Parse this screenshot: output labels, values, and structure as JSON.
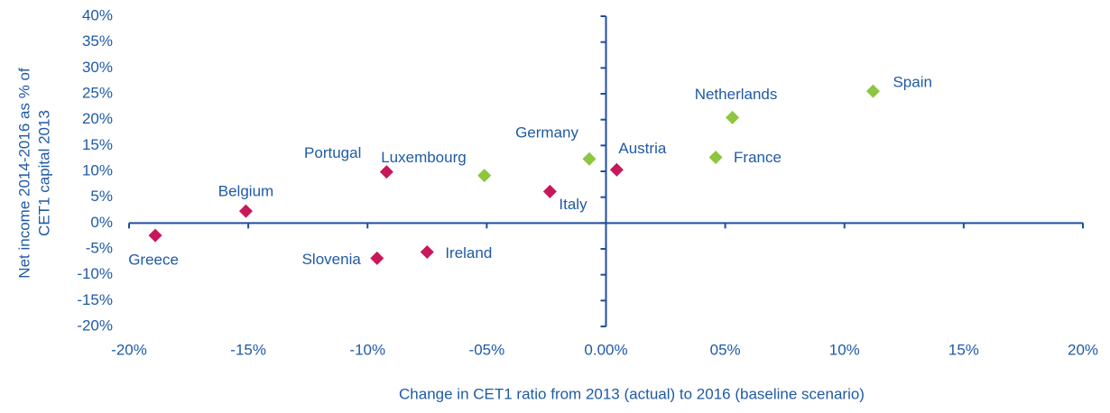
{
  "chart_data": {
    "type": "scatter",
    "xlabel": "Change in CET1 ratio from 2013 (actual) to 2016 (baseline scenario)",
    "ylabel": [
      "Net income 2014-2016 as % of",
      "CET1 capital 2013"
    ],
    "xlim": [
      -20,
      20
    ],
    "ylim": [
      -20,
      40
    ],
    "xticks": [
      {
        "value": -20,
        "label": "-20%"
      },
      {
        "value": -15,
        "label": "-15%"
      },
      {
        "value": -10,
        "label": "-10%"
      },
      {
        "value": -5,
        "label": "-05%"
      },
      {
        "value": 0,
        "label": "0.00%"
      },
      {
        "value": 5,
        "label": "05%"
      },
      {
        "value": 10,
        "label": "10%"
      },
      {
        "value": 15,
        "label": "15%"
      },
      {
        "value": 20,
        "label": "20%"
      }
    ],
    "yticks": [
      {
        "value": 40,
        "label": "40%"
      },
      {
        "value": 35,
        "label": "35%"
      },
      {
        "value": 30,
        "label": "30%"
      },
      {
        "value": 25,
        "label": "25%"
      },
      {
        "value": 20,
        "label": "20%"
      },
      {
        "value": 15,
        "label": "15%"
      },
      {
        "value": 10,
        "label": "10%"
      },
      {
        "value": 5,
        "label": "5%"
      },
      {
        "value": 0,
        "label": "0%"
      },
      {
        "value": -5,
        "label": "-5%"
      },
      {
        "value": -10,
        "label": "-10%"
      },
      {
        "value": -15,
        "label": "-15%"
      },
      {
        "value": -20,
        "label": "-20%"
      }
    ],
    "points": [
      {
        "label": "Greece",
        "x": -18.9,
        "y": -2.4,
        "color": "#c8175a"
      },
      {
        "label": "Belgium",
        "x": -15.1,
        "y": 2.3,
        "color": "#c8175a"
      },
      {
        "label": "Portugal",
        "x": -9.2,
        "y": 9.9,
        "color": "#c8175a"
      },
      {
        "label": "Slovenia",
        "x": -9.6,
        "y": -6.8,
        "color": "#c8175a"
      },
      {
        "label": "Ireland",
        "x": -7.5,
        "y": -5.6,
        "color": "#c8175a"
      },
      {
        "label": "Luxembourg",
        "x": -5.1,
        "y": 9.2,
        "color": "#8dc63f"
      },
      {
        "label": "Italy",
        "x": -2.35,
        "y": 6.1,
        "color": "#c8175a"
      },
      {
        "label": "Germany",
        "x": -0.7,
        "y": 12.4,
        "color": "#8dc63f"
      },
      {
        "label": "Austria",
        "x": 0.45,
        "y": 10.3,
        "color": "#c8175a"
      },
      {
        "label": "France",
        "x": 4.6,
        "y": 12.7,
        "color": "#8dc63f"
      },
      {
        "label": "Netherlands",
        "x": 5.3,
        "y": 20.4,
        "color": "#8dc63f"
      },
      {
        "label": "Spain",
        "x": 11.2,
        "y": 25.5,
        "color": "#8dc63f"
      }
    ]
  }
}
